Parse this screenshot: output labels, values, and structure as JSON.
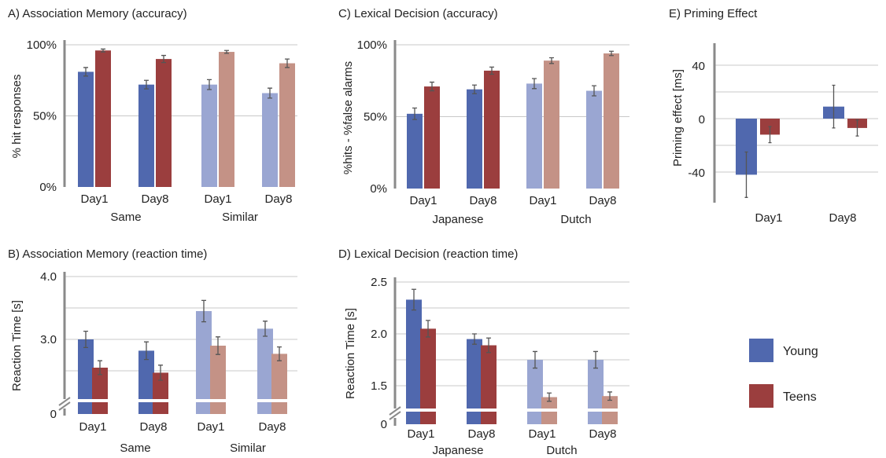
{
  "chart_data": [
    {
      "id": "A",
      "type": "bar",
      "title": "A) Association Memory (accuracy)",
      "ylabel": "% hit responses",
      "ylim": [
        0,
        100
      ],
      "yticks": [
        "0%",
        "50%",
        "100%"
      ],
      "ytick_values": [
        0,
        50,
        100
      ],
      "categories": [
        "Day1",
        "Day8",
        "Day1",
        "Day8"
      ],
      "groups": [
        "Same",
        "Similar"
      ],
      "series": [
        {
          "name": "Young",
          "values": [
            81,
            72,
            72,
            66
          ],
          "errors": [
            3,
            3,
            3.5,
            3.5
          ]
        },
        {
          "name": "Teens",
          "values": [
            96,
            90,
            95,
            87
          ],
          "errors": [
            1,
            2.5,
            1,
            3
          ]
        }
      ]
    },
    {
      "id": "B",
      "type": "bar",
      "title": "B)  Association Memory (reaction time)",
      "ylabel": "Reaction Time [s]",
      "ylim": [
        0,
        4.0
      ],
      "axis_break": true,
      "yticks": [
        "0",
        "3.0",
        "4.0"
      ],
      "ytick_values": [
        0,
        3.0,
        4.0
      ],
      "categories": [
        "Day1",
        "Day8",
        "Day1",
        "Day8"
      ],
      "groups": [
        "Same",
        "Similar"
      ],
      "series": [
        {
          "name": "Young",
          "values": [
            3.0,
            2.82,
            3.45,
            3.17
          ],
          "errors": [
            0.13,
            0.14,
            0.17,
            0.12
          ]
        },
        {
          "name": "Teens",
          "values": [
            2.55,
            2.47,
            2.9,
            2.77
          ],
          "errors": [
            0.11,
            0.12,
            0.14,
            0.11
          ]
        }
      ]
    },
    {
      "id": "C",
      "type": "bar",
      "title": "C) Lexical Decision (accuracy)",
      "ylabel": "%hits - %false alarms",
      "ylim": [
        0,
        100
      ],
      "yticks": [
        "0%",
        "50%",
        "100%"
      ],
      "ytick_values": [
        0,
        50,
        100
      ],
      "categories": [
        "Day1",
        "Day8",
        "Day1",
        "Day8"
      ],
      "groups": [
        "Japanese",
        "Dutch"
      ],
      "series": [
        {
          "name": "Young",
          "values": [
            52,
            69,
            73,
            68
          ],
          "errors": [
            4,
            3,
            3.5,
            3.5
          ]
        },
        {
          "name": "Teens",
          "values": [
            71,
            82,
            89,
            94
          ],
          "errors": [
            3,
            2.5,
            2,
            1.5
          ]
        }
      ]
    },
    {
      "id": "D",
      "type": "bar",
      "title": "D) Lexical Decision (reaction time)",
      "ylabel": "Reaction Time [s]",
      "ylim": [
        0,
        2.5
      ],
      "axis_break": true,
      "yticks": [
        "0",
        "1.5",
        "2.0",
        "2.5"
      ],
      "ytick_values": [
        0,
        1.5,
        2.0,
        2.5
      ],
      "categories": [
        "Day1",
        "Day8",
        "Day1",
        "Day8"
      ],
      "groups": [
        "Japanese",
        "Dutch"
      ],
      "series": [
        {
          "name": "Young",
          "values": [
            2.33,
            1.95,
            1.75,
            1.75
          ],
          "errors": [
            0.1,
            0.05,
            0.08,
            0.08
          ]
        },
        {
          "name": "Teens",
          "values": [
            2.05,
            1.89,
            1.39,
            1.4
          ],
          "errors": [
            0.08,
            0.07,
            0.04,
            0.04
          ]
        }
      ]
    },
    {
      "id": "E",
      "type": "bar",
      "title": "E) Priming Effect",
      "ylabel": "Priming effect [ms]",
      "ylim": [
        -60,
        50
      ],
      "yticks": [
        "-40",
        "0",
        "40"
      ],
      "ytick_values": [
        -40,
        0,
        40
      ],
      "categories": [
        "Day1",
        "Day8"
      ],
      "series": [
        {
          "name": "Young",
          "values": [
            -42,
            9
          ],
          "errors": [
            17,
            16
          ]
        },
        {
          "name": "Teens",
          "values": [
            -12,
            -7
          ],
          "errors": [
            6,
            6
          ]
        }
      ]
    }
  ],
  "legend": {
    "position": "bottom-right",
    "items": [
      {
        "name": "Young",
        "color": "#5068ae"
      },
      {
        "name": "Teens",
        "color": "#9b3e3e"
      }
    ]
  },
  "colors": {
    "young": "#5068ae",
    "teens": "#9b3e3e",
    "young_light": "#9aa6d2",
    "teens_light": "#c49286"
  }
}
